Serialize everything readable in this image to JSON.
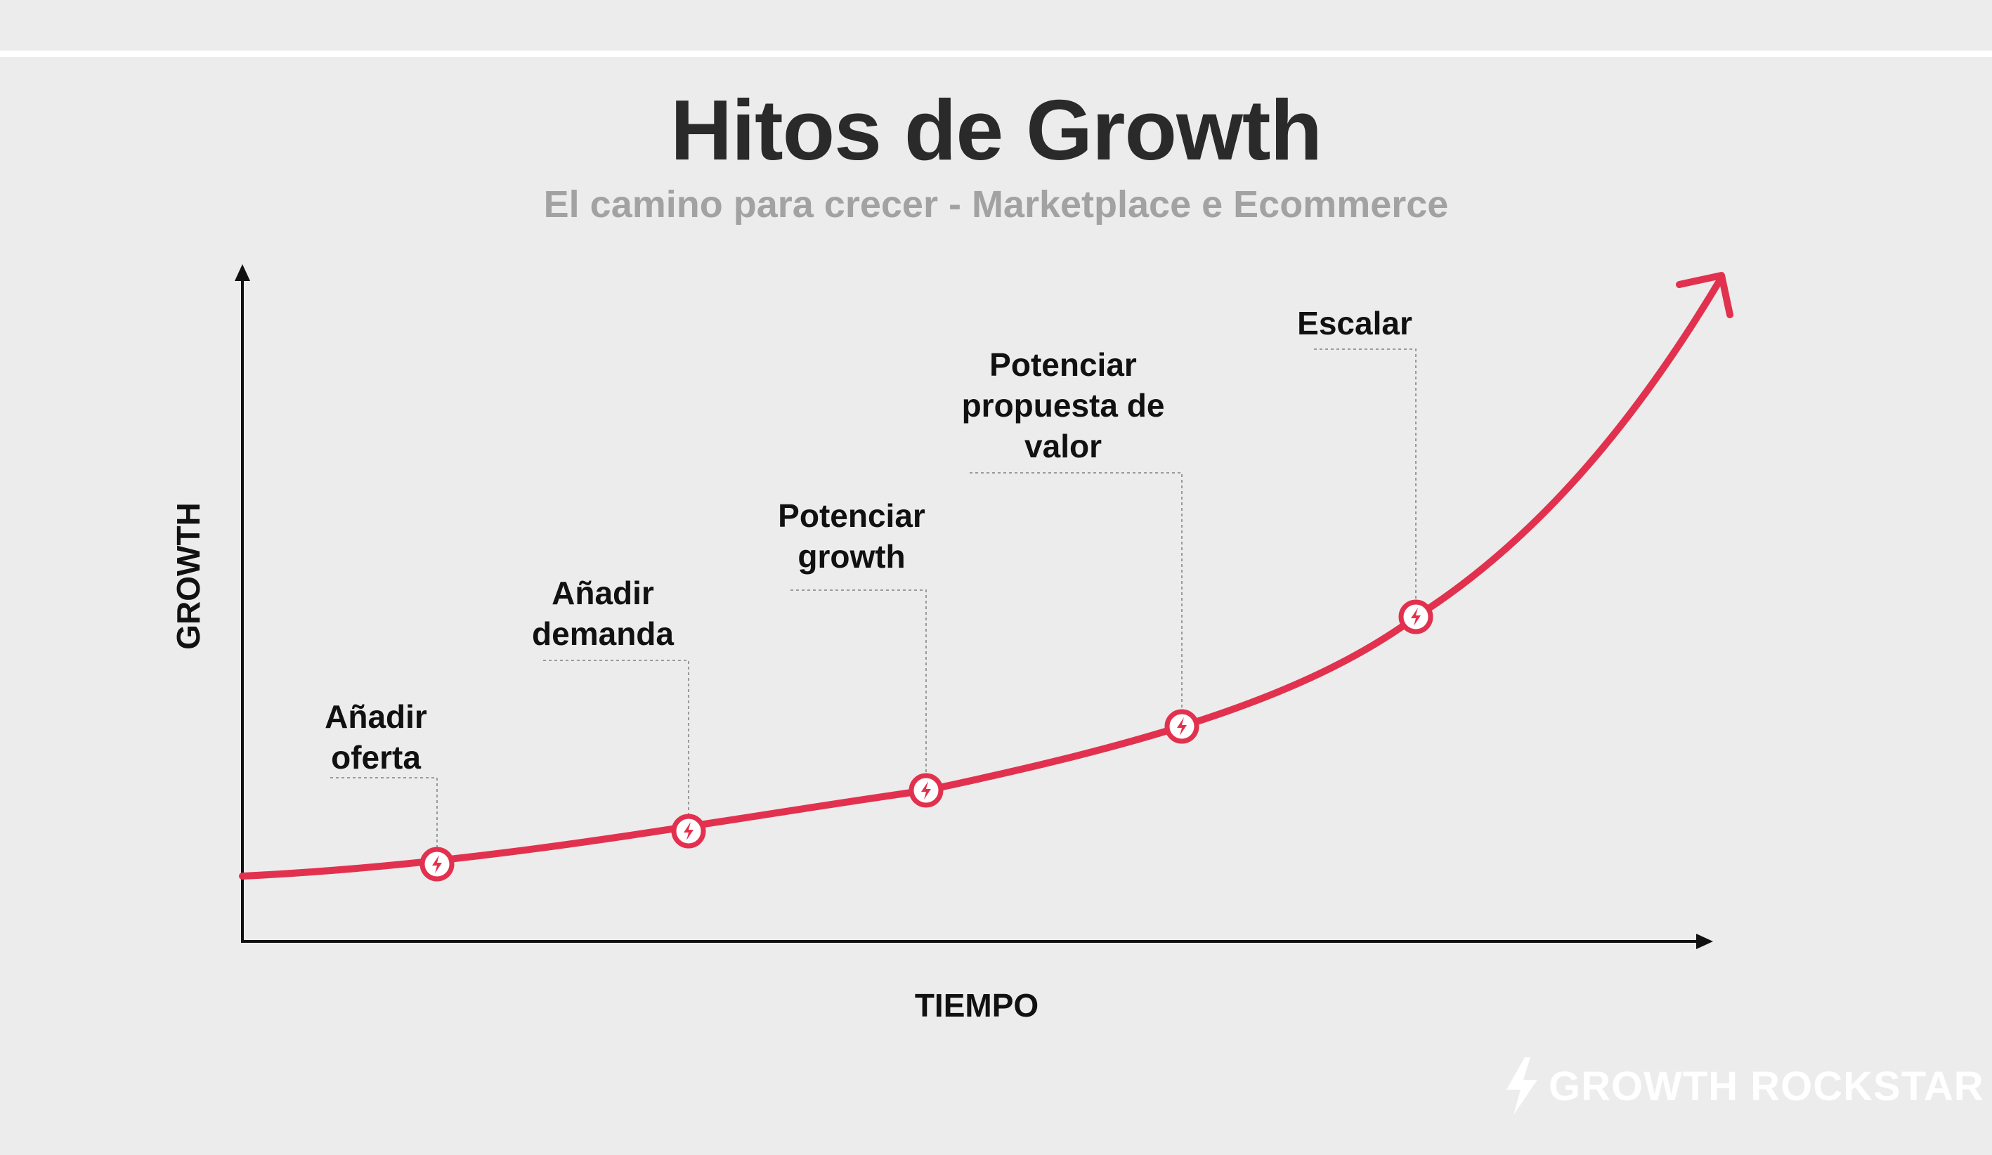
{
  "header": {
    "title": "Hitos de Growth",
    "subtitle": "El camino para crecer - Marketplace e Ecommerce"
  },
  "axes": {
    "y_label": "GROWTH",
    "x_label": "TIEMPO"
  },
  "milestones": [
    {
      "label": "Añadir\noferta",
      "icon": "lightning-bolt-icon"
    },
    {
      "label": "Añadir\ndemanda",
      "icon": "lightning-bolt-icon"
    },
    {
      "label": "Potenciar\ngrowth",
      "icon": "lightning-bolt-icon"
    },
    {
      "label": "Potenciar\npropuesta de\nvalor",
      "icon": "lightning-bolt-icon"
    },
    {
      "label": "Escalar",
      "icon": "lightning-bolt-icon"
    }
  ],
  "brand": {
    "name": "GROWTH ROCKSTAR",
    "icon": "lightning-bolt-icon"
  },
  "colors": {
    "curve": "#e2314e",
    "background": "#ececec",
    "axis": "#111111",
    "title": "#2a2a2a",
    "subtitle": "#a2a2a2"
  }
}
